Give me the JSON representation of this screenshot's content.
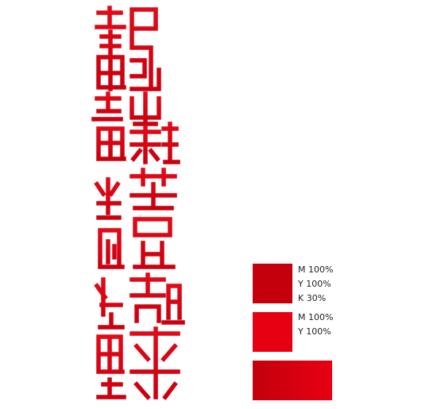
{
  "seal": {
    "text": "鄢雲開書法",
    "style": "seal-script",
    "color_top": "#e10a18",
    "color_bottom": "#c9000f"
  },
  "swatches": [
    {
      "name": "dark-red",
      "color": "#c4000d",
      "labels": [
        "M 100%",
        "Y 100%",
        "K  30%"
      ]
    },
    {
      "name": "bright-red",
      "color": "#e60012",
      "labels": [
        "M 100%",
        "Y 100%"
      ]
    },
    {
      "name": "gradient",
      "color_start": "#c4000d",
      "color_end": "#e60012",
      "labels": []
    }
  ]
}
